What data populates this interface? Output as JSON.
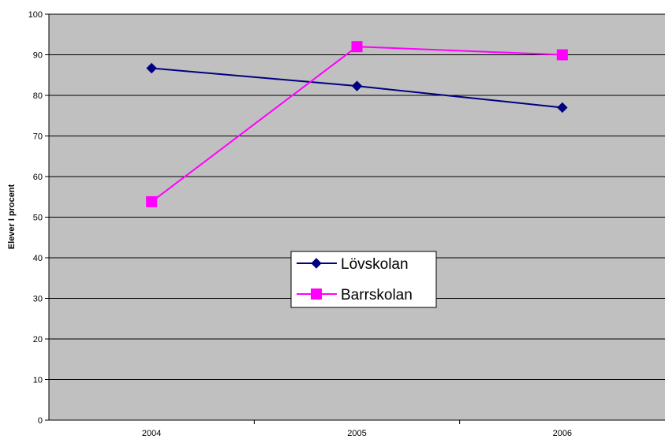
{
  "chart_data": {
    "type": "line",
    "title": "",
    "xlabel": "",
    "ylabel": "Elever I procent",
    "categories": [
      "2004",
      "2005",
      "2006"
    ],
    "ylim": [
      0,
      100
    ],
    "yticks": [
      "0",
      "10",
      "20",
      "30",
      "40",
      "50",
      "60",
      "70",
      "80",
      "90",
      "100"
    ],
    "grid": true,
    "plot_background": "#c0c0c0",
    "legend_position": "center",
    "series": [
      {
        "name": "Lövskolan",
        "values": [
          86.7,
          82.3,
          77.0
        ],
        "color": "#000080",
        "marker": "diamond"
      },
      {
        "name": "Barrskolan",
        "values": [
          53.8,
          92.0,
          90.0
        ],
        "color": "#ff00ff",
        "marker": "square"
      }
    ]
  }
}
